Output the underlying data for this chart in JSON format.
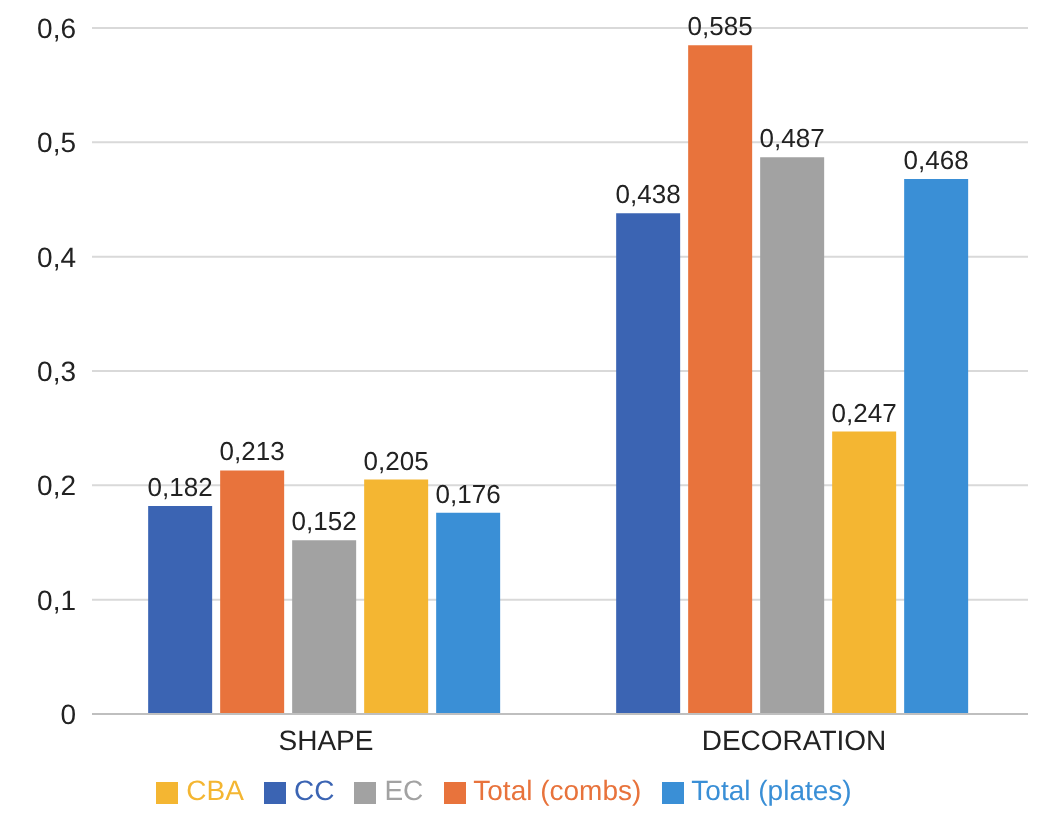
{
  "chart_data": {
    "type": "bar",
    "categories": [
      "SHAPE",
      "DECORATION"
    ],
    "series": [
      {
        "name": "CC",
        "color": "#3b64b3",
        "values": [
          0.182,
          0.438
        ],
        "value_labels": [
          "0,182",
          "0,438"
        ]
      },
      {
        "name": "Total (combs)",
        "color": "#e8733c",
        "values": [
          0.213,
          0.585
        ],
        "value_labels": [
          "0,213",
          "0,585"
        ]
      },
      {
        "name": "EC",
        "color": "#a2a2a2",
        "values": [
          0.152,
          0.487
        ],
        "value_labels": [
          "0,152",
          "0,487"
        ]
      },
      {
        "name": "CBA",
        "color": "#f4b632",
        "values": [
          0.205,
          0.247
        ],
        "value_labels": [
          "0,205",
          "0,247"
        ]
      },
      {
        "name": "Total (plates)",
        "color": "#3a8fd6",
        "values": [
          0.176,
          0.468
        ],
        "value_labels": [
          "0,176",
          "0,468"
        ]
      }
    ],
    "ylim": [
      0,
      0.6
    ],
    "yticks": [
      0,
      {
        "value": 0.1,
        "label": "0,1"
      },
      {
        "value": 0.2,
        "label": "0,2"
      },
      {
        "value": 0.3,
        "label": "0,3"
      },
      {
        "value": 0.4,
        "label": "0,4"
      },
      {
        "value": 0.5,
        "label": "0,5"
      },
      {
        "value": 0.6,
        "label": "0,6"
      }
    ],
    "grid": "y",
    "legend": "bottom"
  }
}
